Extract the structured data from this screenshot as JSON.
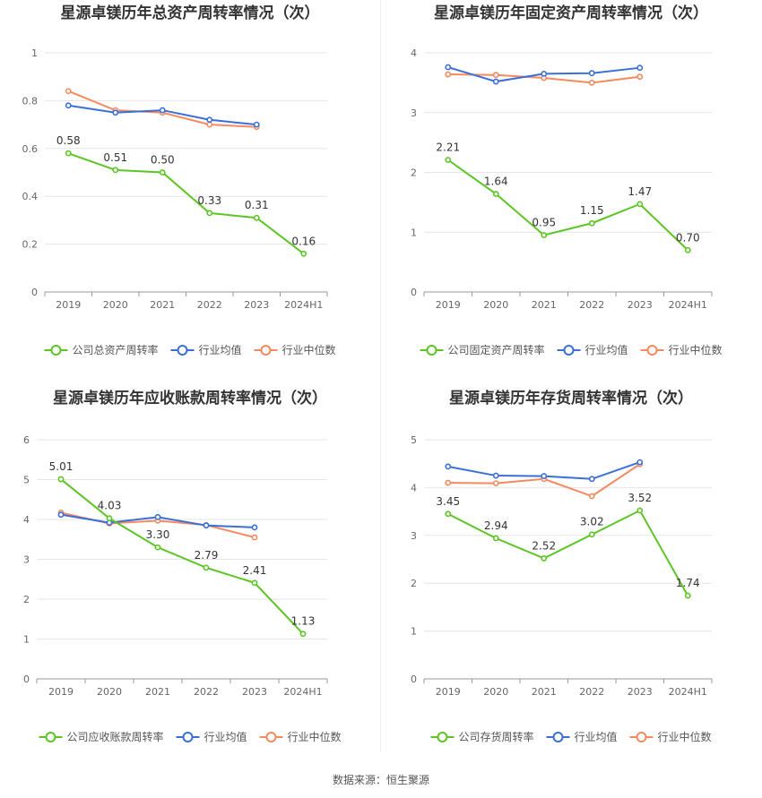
{
  "source_text": "数据来源：恒生聚源",
  "colors": {
    "company": "#5cc524",
    "industry_avg": "#3a6fd8",
    "industry_median": "#f58a5e",
    "grid": "#e6e6e6",
    "axis": "#999999",
    "tick_text": "#666666",
    "title_text": "#333333"
  },
  "chart_data": [
    {
      "type": "line",
      "title": "星源卓镁历年总资产周转率情况（次）",
      "categories": [
        "2019",
        "2020",
        "2021",
        "2022",
        "2023",
        "2024H1"
      ],
      "ylim": [
        0,
        1
      ],
      "yticks": [
        0,
        0.2,
        0.4,
        0.6,
        0.8,
        1
      ],
      "ytick_labels": [
        "0",
        "0.2",
        "0.4",
        "0.6",
        "0.8",
        "1"
      ],
      "legend_position": "bottom",
      "series": [
        {
          "name": "公司总资产周转率",
          "role": "company",
          "values": [
            0.58,
            0.51,
            0.5,
            0.33,
            0.31,
            0.16
          ],
          "labels": [
            "0.58",
            "0.51",
            "0.50",
            "0.33",
            "0.31",
            "0.16"
          ]
        },
        {
          "name": "行业均值",
          "role": "industry_avg",
          "values": [
            0.78,
            0.75,
            0.76,
            0.72,
            0.7,
            null
          ]
        },
        {
          "name": "行业中位数",
          "role": "industry_median",
          "values": [
            0.84,
            0.76,
            0.75,
            0.7,
            0.69,
            null
          ]
        }
      ]
    },
    {
      "type": "line",
      "title": "星源卓镁历年固定资产周转率情况（次）",
      "categories": [
        "2019",
        "2020",
        "2021",
        "2022",
        "2023",
        "2024H1"
      ],
      "ylim": [
        0,
        4
      ],
      "yticks": [
        0,
        1,
        2,
        3,
        4
      ],
      "ytick_labels": [
        "0",
        "1",
        "2",
        "3",
        "4"
      ],
      "legend_position": "bottom",
      "series": [
        {
          "name": "公司固定资产周转率",
          "role": "company",
          "values": [
            2.21,
            1.64,
            0.95,
            1.15,
            1.47,
            0.7
          ],
          "labels": [
            "2.21",
            "1.64",
            "0.95",
            "1.15",
            "1.47",
            "0.70"
          ]
        },
        {
          "name": "行业均值",
          "role": "industry_avg",
          "values": [
            3.76,
            3.52,
            3.65,
            3.66,
            3.75,
            null
          ]
        },
        {
          "name": "行业中位数",
          "role": "industry_median",
          "values": [
            3.64,
            3.63,
            3.58,
            3.5,
            3.6,
            null
          ]
        }
      ]
    },
    {
      "type": "line",
      "title": "星源卓镁历年应收账款周转率情况（次）",
      "categories": [
        "2019",
        "2020",
        "2021",
        "2022",
        "2023",
        "2024H1"
      ],
      "ylim": [
        0,
        6
      ],
      "yticks": [
        0,
        1,
        2,
        3,
        4,
        5,
        6
      ],
      "ytick_labels": [
        "0",
        "1",
        "2",
        "3",
        "4",
        "5",
        "6"
      ],
      "legend_position": "bottom",
      "series": [
        {
          "name": "公司应收账款周转率",
          "role": "company",
          "values": [
            5.01,
            4.03,
            3.3,
            2.79,
            2.41,
            1.13
          ],
          "labels": [
            "5.01",
            "4.03",
            "3.30",
            "2.79",
            "2.41",
            "1.13"
          ]
        },
        {
          "name": "行业均值",
          "role": "industry_avg",
          "values": [
            4.12,
            3.92,
            4.06,
            3.85,
            3.8,
            null
          ]
        },
        {
          "name": "行业中位数",
          "role": "industry_median",
          "values": [
            4.17,
            3.9,
            3.97,
            3.86,
            3.55,
            null
          ]
        }
      ]
    },
    {
      "type": "line",
      "title": "星源卓镁历年存货周转率情况（次）",
      "categories": [
        "2019",
        "2020",
        "2021",
        "2022",
        "2023",
        "2024H1"
      ],
      "ylim": [
        0,
        5
      ],
      "yticks": [
        0,
        1,
        2,
        3,
        4,
        5
      ],
      "ytick_labels": [
        "0",
        "1",
        "2",
        "3",
        "4",
        "5"
      ],
      "legend_position": "bottom",
      "series": [
        {
          "name": "公司存货周转率",
          "role": "company",
          "values": [
            3.45,
            2.94,
            2.52,
            3.02,
            3.52,
            1.74
          ],
          "labels": [
            "3.45",
            "2.94",
            "2.52",
            "3.02",
            "3.52",
            "1.74"
          ]
        },
        {
          "name": "行业均值",
          "role": "industry_avg",
          "values": [
            4.44,
            4.25,
            4.24,
            4.18,
            4.53,
            null
          ]
        },
        {
          "name": "行业中位数",
          "role": "industry_median",
          "values": [
            4.1,
            4.09,
            4.18,
            3.82,
            4.49,
            null
          ]
        }
      ]
    }
  ]
}
